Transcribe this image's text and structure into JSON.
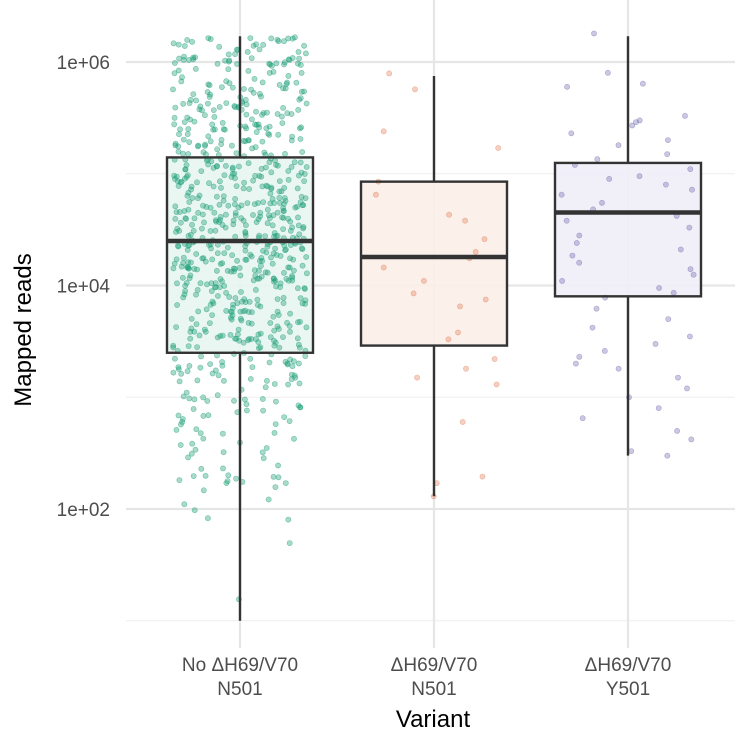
{
  "chart_data": {
    "type": "box",
    "title": "",
    "xlabel": "Variant",
    "ylabel": "Mapped reads",
    "y_scale": "log10",
    "ylim": [
      6,
      3000000
    ],
    "y_ticks": [
      {
        "value": 100,
        "label": "1e+02"
      },
      {
        "value": 10000,
        "label": "1e+04"
      },
      {
        "value": 1000000,
        "label": "1e+06"
      }
    ],
    "grid": true,
    "legend": "none",
    "categories": [
      {
        "line1": "No ΔH69/V70",
        "line2": "N501"
      },
      {
        "line1": "ΔH69/V70",
        "line2": "N501"
      },
      {
        "line1": "ΔH69/V70",
        "line2": "Y501"
      }
    ],
    "series": [
      {
        "color": "#1b9e77",
        "fill": "#e8f5ef",
        "box": {
          "whisker_low": 10,
          "q1": 2500,
          "median": 25000,
          "q3": 140000,
          "whisker_high": 1700000
        },
        "points_approx_count": 750,
        "points_range": [
          10,
          1700000
        ]
      },
      {
        "color": "#e6835e",
        "fill": "#fbeee8",
        "box": {
          "whisker_low": 130,
          "q1": 2900,
          "median": 18000,
          "q3": 85000,
          "whisker_high": 750000
        },
        "points": [
          790000,
          570000,
          240000,
          170000,
          85000,
          65000,
          43000,
          38000,
          26000,
          20000,
          17500,
          14500,
          11000,
          8500,
          7500,
          6500,
          3800,
          3300,
          2200,
          1800,
          1500,
          1300,
          600,
          195,
          170,
          130
        ]
      },
      {
        "color": "#7570b3",
        "fill": "#efedf7",
        "box": {
          "whisker_low": 300,
          "q1": 8000,
          "median": 45000,
          "q3": 125000,
          "whisker_high": 1700000
        },
        "points": [
          1800000,
          800000,
          640000,
          600000,
          330000,
          300000,
          290000,
          270000,
          230000,
          200000,
          180000,
          150000,
          135000,
          120000,
          110000,
          95000,
          90000,
          80000,
          72000,
          65000,
          55000,
          48000,
          42000,
          38000,
          33000,
          28000,
          24000,
          21000,
          18500,
          16000,
          14000,
          12500,
          11000,
          9500,
          8600,
          7800,
          6200,
          5000,
          4200,
          3500,
          3000,
          2600,
          2300,
          2000,
          1800,
          1500,
          1200,
          1000,
          800,
          650,
          500,
          420,
          330,
          300
        ]
      }
    ]
  }
}
